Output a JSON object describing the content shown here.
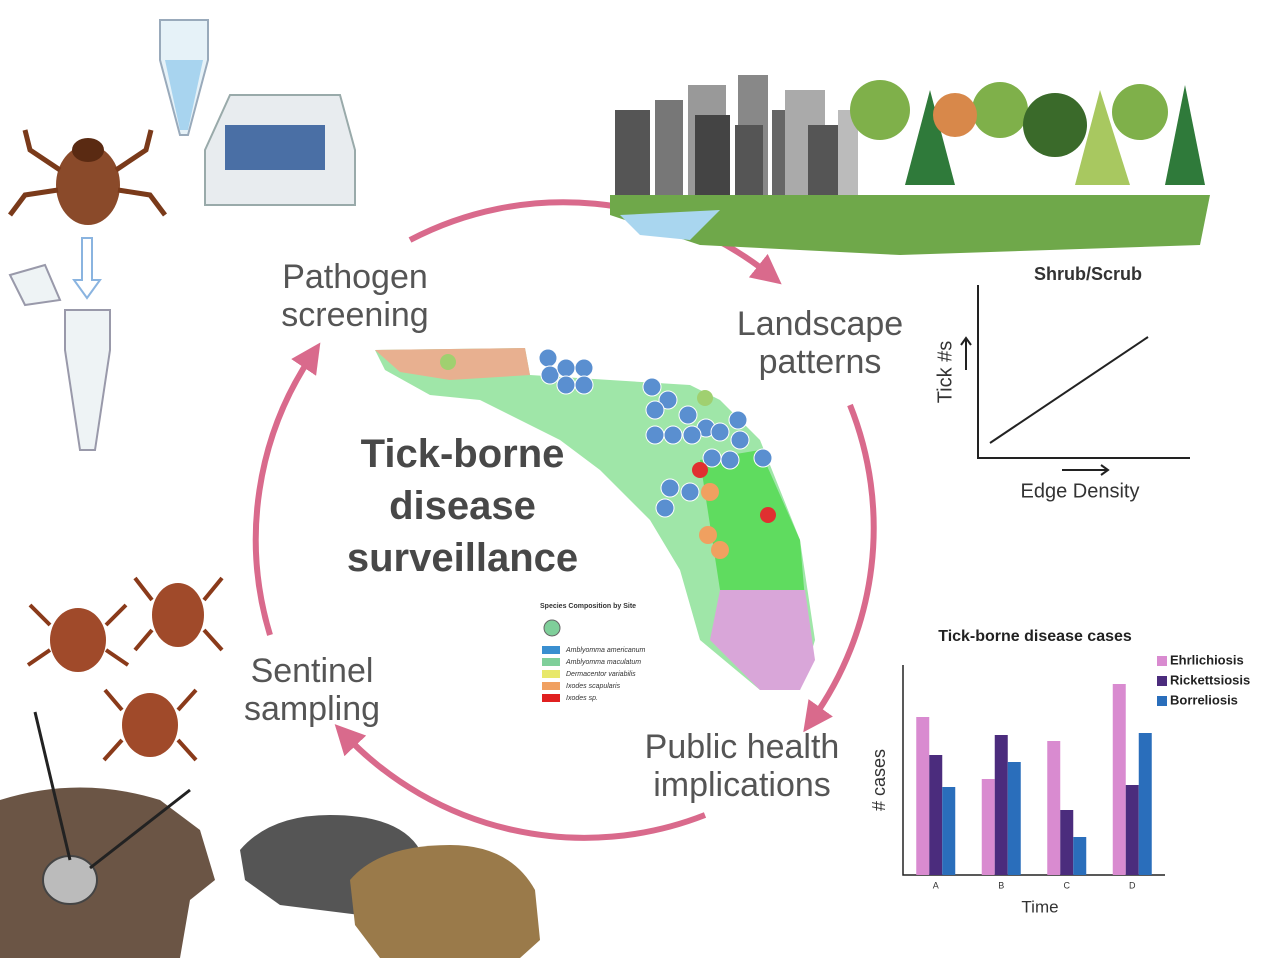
{
  "title": "Tick-borne disease surveillance",
  "cycle_steps": [
    "Pathogen screening",
    "Landscape patterns",
    "Public health implications",
    "Sentinel sampling"
  ],
  "landscape_plot": {
    "title": "Shrub/Scrub",
    "y_label": "Tick #s",
    "x_label": "Edge Density"
  },
  "map_legend": {
    "title": "Species Composition by Site",
    "items": [
      {
        "name": "Amblyomma americanum",
        "color": "#3a8fd0"
      },
      {
        "name": "Amblyomma maculatum",
        "color": "#7fcf9a"
      },
      {
        "name": "Dermacentor variabilis",
        "color": "#e8e86a"
      },
      {
        "name": "Ixodes scapularis",
        "color": "#f0a060"
      },
      {
        "name": "Ixodes sp.",
        "color": "#e02020"
      }
    ]
  },
  "chart_data": {
    "type": "bar",
    "title": "Tick-borne disease cases",
    "categories": [
      "A",
      "B",
      "C",
      "D"
    ],
    "x_label": "Time",
    "y_label": "# cases",
    "series": [
      {
        "name": "Ehrlichiosis",
        "color": "#d98bd0",
        "values": [
          158,
          96,
          134,
          191
        ]
      },
      {
        "name": "Rickettsiosis",
        "color": "#4b2c7d",
        "values": [
          120,
          140,
          65,
          90
        ]
      },
      {
        "name": "Borreliosis",
        "color": "#2a6ebb",
        "values": [
          88,
          113,
          38,
          142
        ]
      }
    ],
    "ylim": [
      0,
      210
    ]
  }
}
